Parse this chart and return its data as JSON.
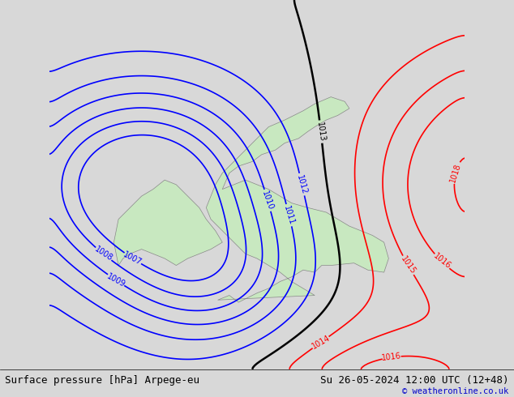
{
  "title_left": "Surface pressure [hPa] Arpege-eu",
  "title_right": "Su 26-05-2024 12:00 UTC (12+48)",
  "credit": "© weatheronline.co.uk",
  "bg_color": "#d8d8d8",
  "land_color": "#c8e8c0",
  "font_name": "DejaVu Sans Mono",
  "blue_contours": [
    1007,
    1008,
    1009,
    1010,
    1011,
    1012
  ],
  "black_contours": [
    1013
  ],
  "red_contours": [
    1014,
    1015,
    1016,
    1018
  ],
  "contour_lw_blue": 1.2,
  "contour_lw_black": 1.8,
  "contour_lw_red": 1.2
}
